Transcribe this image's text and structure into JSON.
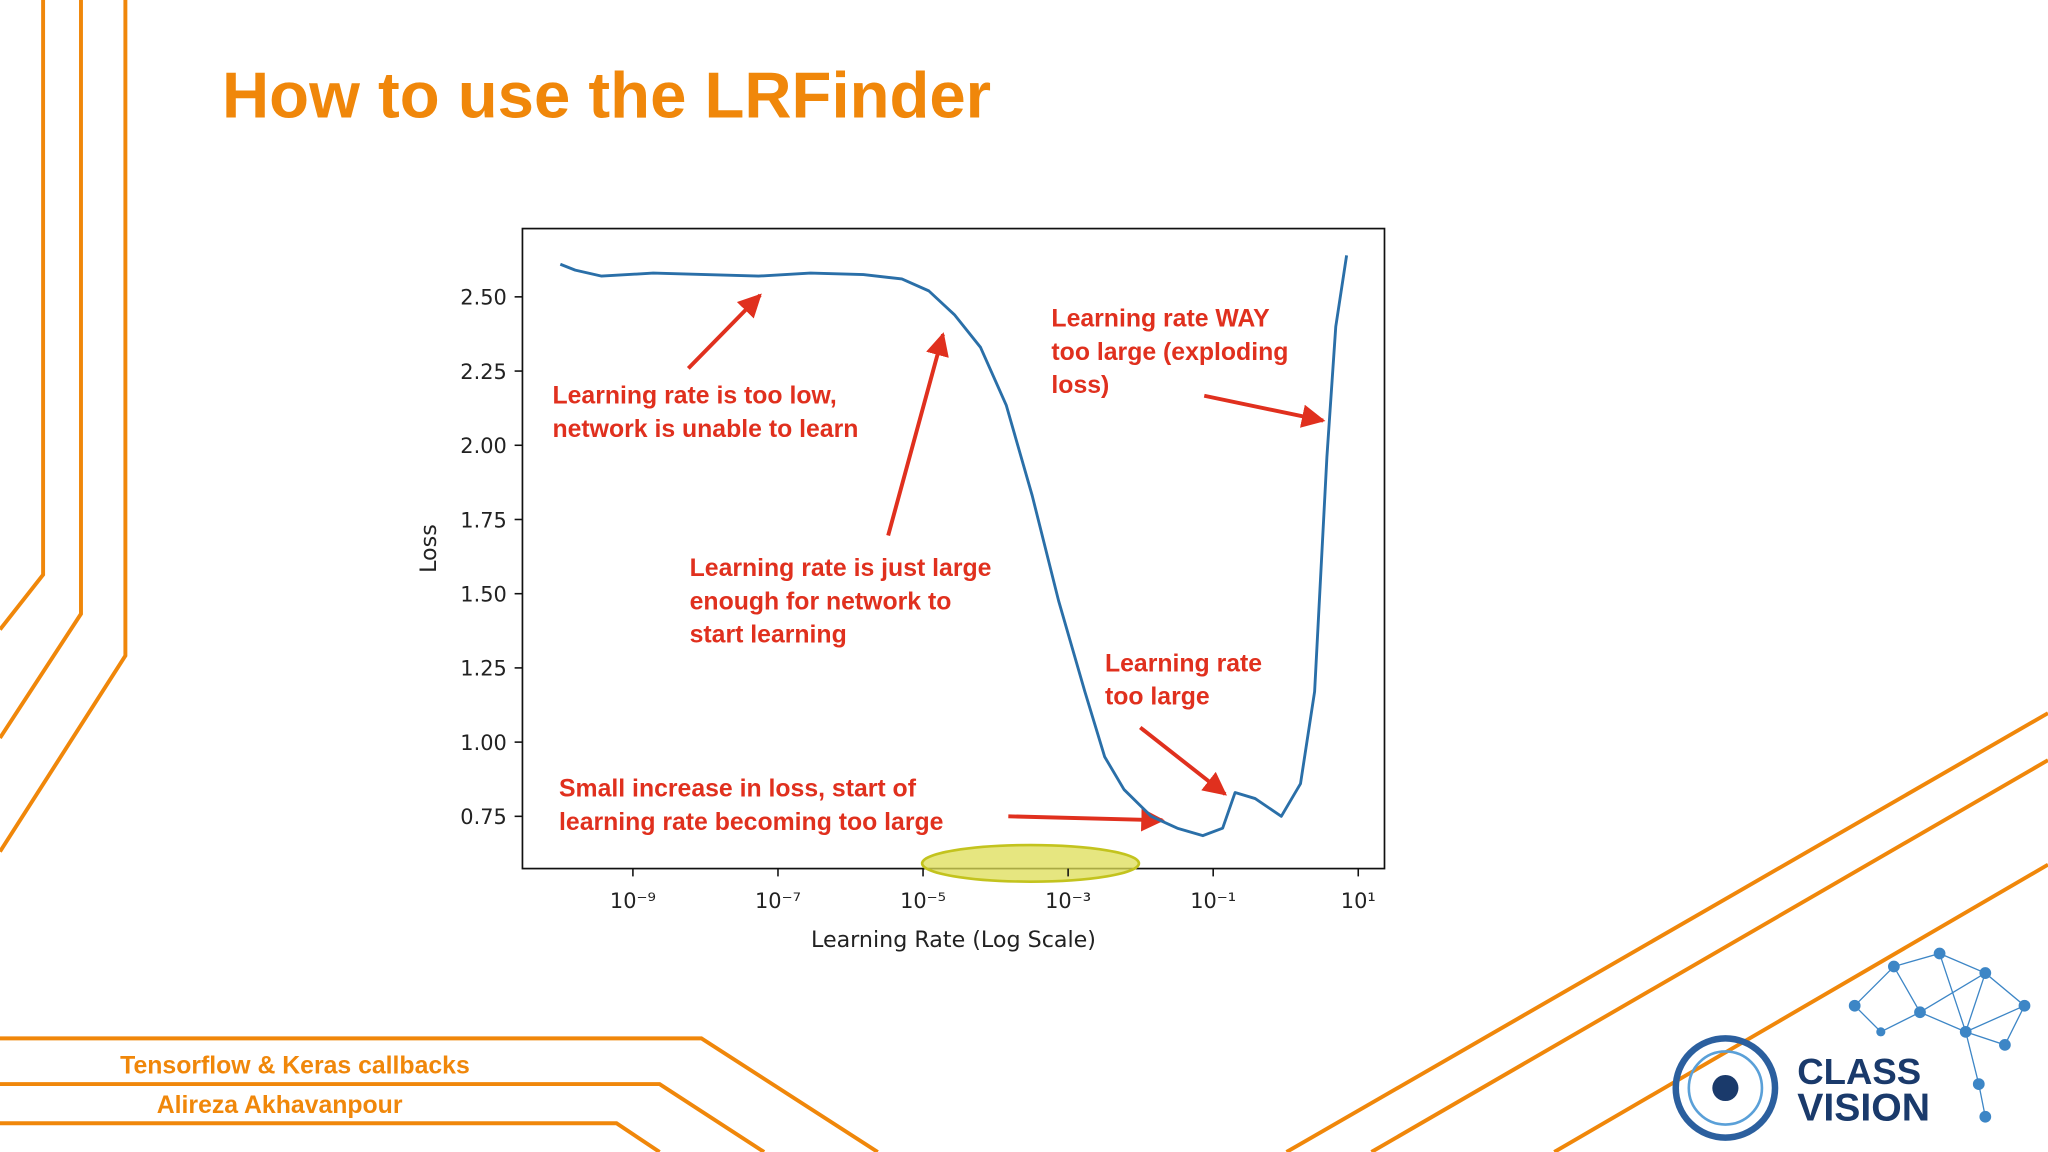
{
  "slide": {
    "title": "How to use the LRFinder",
    "footer": [
      "Tensorflow & Keras callbacks",
      "Alireza Akhavanpour"
    ]
  },
  "logo": {
    "lines": [
      "CLASS",
      "VISION"
    ]
  },
  "chart_data": {
    "type": "line",
    "xscale": "log",
    "color": "#2a6fa8",
    "xlabel": "Learning Rate (Log Scale)",
    "ylabel": "Loss",
    "x": [
      1e-10,
      1.6e-10,
      3.7e-10,
      1.9e-09,
      1e-08,
      5.4e-08,
      2.8e-07,
      1.5e-06,
      5.1e-06,
      1.2e-05,
      2.7e-05,
      6.2e-05,
      0.00014,
      0.00032,
      0.00074,
      0.0017,
      0.0032,
      0.0059,
      0.014,
      0.032,
      0.072,
      0.135,
      0.2,
      0.38,
      0.87,
      1.6,
      2.5,
      3.7,
      4.9,
      6.9
    ],
    "values": [
      2.61,
      2.59,
      2.57,
      2.58,
      2.575,
      2.57,
      2.58,
      2.575,
      2.56,
      2.52,
      2.44,
      2.33,
      2.135,
      1.83,
      1.476,
      1.17,
      0.95,
      0.84,
      0.75,
      0.71,
      0.685,
      0.71,
      0.83,
      0.81,
      0.75,
      0.86,
      1.17,
      1.96,
      2.4,
      2.64
    ],
    "xlim": [
      3e-11,
      23
    ],
    "xticks": [
      {
        "value": 1e-09,
        "label": "10⁻⁹"
      },
      {
        "value": 1e-07,
        "label": "10⁻⁷"
      },
      {
        "value": 1e-05,
        "label": "10⁻⁵"
      },
      {
        "value": 0.001,
        "label": "10⁻³"
      },
      {
        "value": 0.1,
        "label": "10⁻¹"
      },
      {
        "value": 10,
        "label": "10¹"
      }
    ],
    "ylim": [
      0.574,
      2.73
    ],
    "yticks": [
      {
        "value": 0.75,
        "label": "0.75"
      },
      {
        "value": 1,
        "label": "1.00"
      },
      {
        "value": 1.25,
        "label": "1.25"
      },
      {
        "value": 1.5,
        "label": "1.50"
      },
      {
        "value": 1.75,
        "label": "1.75"
      },
      {
        "value": 2,
        "label": "2.00"
      },
      {
        "value": 2.25,
        "label": "2.25"
      },
      {
        "value": 2.5,
        "label": "2.50"
      }
    ],
    "annotations": [
      {
        "lines": [
          "Learning rate is too low,",
          "network is unable to learn"
        ]
      },
      {
        "lines": [
          "Learning rate is just large",
          "enough for network to",
          "start learning"
        ]
      },
      {
        "lines": [
          "Learning rate WAY",
          "too large (exploding",
          "loss)"
        ]
      },
      {
        "lines": [
          "Learning rate",
          "too large"
        ]
      },
      {
        "lines": [
          "Small increase in loss, start of",
          "learning rate becoming too large"
        ]
      }
    ]
  }
}
